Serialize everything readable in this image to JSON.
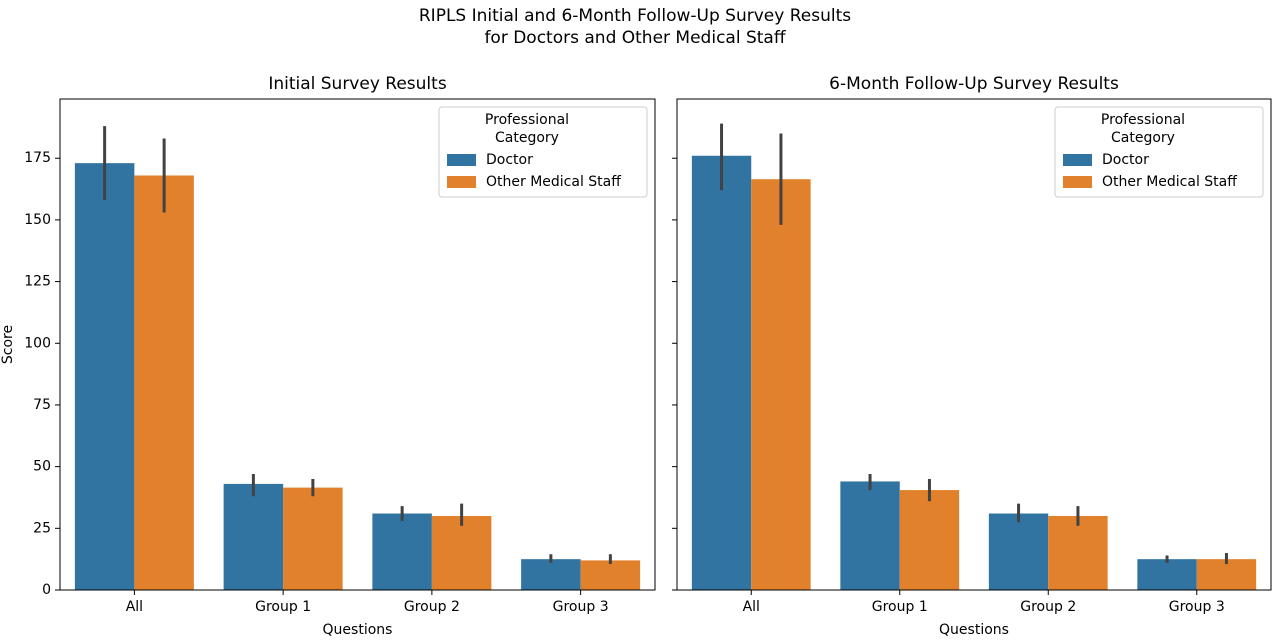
{
  "suptitle": [
    "RIPLS Initial and 6-Month Follow-Up Survey Results",
    "for Doctors and Other Medical Staff"
  ],
  "chart_data": [
    {
      "type": "bar",
      "title": "Initial Survey Results",
      "xlabel": "Questions",
      "ylabel": "Score",
      "categories": [
        "All",
        "Group 1",
        "Group 2",
        "Group 3"
      ],
      "series": [
        {
          "name": "Doctor",
          "color": "#3274a1",
          "values": [
            173,
            43,
            31,
            12.5
          ],
          "ci_low": [
            158,
            38,
            28,
            11
          ],
          "ci_high": [
            188,
            47,
            34,
            14.5
          ]
        },
        {
          "name": "Other Medical Staff",
          "color": "#e1812c",
          "values": [
            168,
            41.5,
            30,
            12
          ],
          "ci_low": [
            153,
            38,
            26,
            10.5
          ],
          "ci_high": [
            183,
            45,
            35,
            14.5
          ]
        }
      ],
      "ylim": [
        0,
        199
      ],
      "yticks": [
        0,
        25,
        50,
        75,
        100,
        125,
        150,
        175
      ],
      "show_ytick_labels": true,
      "legend_title": [
        "Professional",
        "Category"
      ],
      "legend": "upper right"
    },
    {
      "type": "bar",
      "title": "6-Month Follow-Up Survey Results",
      "xlabel": "Questions",
      "categories": [
        "All",
        "Group 1",
        "Group 2",
        "Group 3"
      ],
      "series": [
        {
          "name": "Doctor",
          "color": "#3274a1",
          "values": [
            176,
            44,
            31,
            12.5
          ],
          "ci_low": [
            162,
            40.5,
            27.5,
            11
          ],
          "ci_high": [
            189,
            47,
            35,
            14
          ]
        },
        {
          "name": "Other Medical Staff",
          "color": "#e1812c",
          "values": [
            166.5,
            40.5,
            30,
            12.5
          ],
          "ci_low": [
            148,
            36,
            26,
            10.5
          ],
          "ci_high": [
            185,
            45,
            34,
            15
          ]
        }
      ],
      "ylim": [
        0,
        199
      ],
      "yticks": [
        0,
        25,
        50,
        75,
        100,
        125,
        150,
        175
      ],
      "show_ytick_labels": false,
      "legend_title": [
        "Professional",
        "Category"
      ],
      "legend": "upper right"
    }
  ]
}
